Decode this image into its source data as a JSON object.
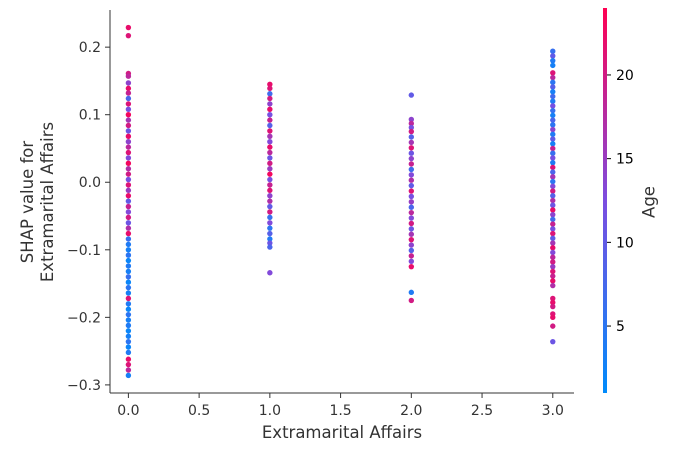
{
  "chart_data": {
    "type": "scatter",
    "title": "",
    "xlabel": "Extramarital Affairs",
    "ylabel_lines": [
      "SHAP value for",
      "Extramarital Affairs"
    ],
    "xlim": [
      -0.13,
      3.15
    ],
    "ylim": [
      -0.312,
      0.255
    ],
    "x_ticks": [
      0.0,
      0.5,
      1.0,
      1.5,
      2.0,
      2.5,
      3.0
    ],
    "x_tick_labels": [
      "0.0",
      "0.5",
      "1.0",
      "1.5",
      "2.0",
      "2.5",
      "3.0"
    ],
    "y_ticks": [
      -0.3,
      -0.2,
      -0.1,
      0.0,
      0.1,
      0.2
    ],
    "y_tick_labels": [
      "−0.3",
      "−0.2",
      "−0.1",
      "0.0",
      "0.1",
      "0.2"
    ],
    "grid": false,
    "colorbar": {
      "label": "Age",
      "range": [
        1,
        24
      ],
      "ticks": [
        5,
        10,
        15,
        20
      ],
      "tick_labels": [
        "5",
        "10",
        "15",
        "20"
      ],
      "colors": [
        "#008bfb",
        "#7c4de0",
        "#ff0052"
      ]
    },
    "points": [
      {
        "x": 0,
        "y": 0.229,
        "c": 22
      },
      {
        "x": 0,
        "y": 0.217,
        "c": 21
      },
      {
        "x": 0,
        "y": 0.161,
        "c": 20
      },
      {
        "x": 0,
        "y": 0.157,
        "c": 18
      },
      {
        "x": 0,
        "y": 0.147,
        "c": 14
      },
      {
        "x": 0,
        "y": 0.139,
        "c": 22
      },
      {
        "x": 0,
        "y": 0.132,
        "c": 19
      },
      {
        "x": 0,
        "y": 0.124,
        "c": 8
      },
      {
        "x": 0,
        "y": 0.116,
        "c": 21
      },
      {
        "x": 0,
        "y": 0.108,
        "c": 12
      },
      {
        "x": 0,
        "y": 0.1,
        "c": 23
      },
      {
        "x": 0,
        "y": 0.092,
        "c": 16
      },
      {
        "x": 0,
        "y": 0.084,
        "c": 20
      },
      {
        "x": 0,
        "y": 0.076,
        "c": 11
      },
      {
        "x": 0,
        "y": 0.068,
        "c": 22
      },
      {
        "x": 0,
        "y": 0.06,
        "c": 14
      },
      {
        "x": 0,
        "y": 0.052,
        "c": 18
      },
      {
        "x": 0,
        "y": 0.044,
        "c": 21
      },
      {
        "x": 0,
        "y": 0.036,
        "c": 13
      },
      {
        "x": 0,
        "y": 0.028,
        "c": 23
      },
      {
        "x": 0,
        "y": 0.02,
        "c": 17
      },
      {
        "x": 0,
        "y": 0.012,
        "c": 20
      },
      {
        "x": 0,
        "y": 0.004,
        "c": 12
      },
      {
        "x": 0,
        "y": -0.004,
        "c": 21
      },
      {
        "x": 0,
        "y": -0.012,
        "c": 15
      },
      {
        "x": 0,
        "y": -0.02,
        "c": 22
      },
      {
        "x": 0,
        "y": -0.028,
        "c": 10
      },
      {
        "x": 0,
        "y": -0.036,
        "c": 19
      },
      {
        "x": 0,
        "y": -0.044,
        "c": 13
      },
      {
        "x": 0,
        "y": -0.052,
        "c": 20
      },
      {
        "x": 0,
        "y": -0.06,
        "c": 11
      },
      {
        "x": 0,
        "y": -0.068,
        "c": 17
      },
      {
        "x": 0,
        "y": -0.076,
        "c": 22
      },
      {
        "x": 0,
        "y": -0.084,
        "c": 6
      },
      {
        "x": 0,
        "y": -0.092,
        "c": 4
      },
      {
        "x": 0,
        "y": -0.1,
        "c": 3
      },
      {
        "x": 0,
        "y": -0.108,
        "c": 5
      },
      {
        "x": 0,
        "y": -0.116,
        "c": 2
      },
      {
        "x": 0,
        "y": -0.124,
        "c": 4
      },
      {
        "x": 0,
        "y": -0.132,
        "c": 3
      },
      {
        "x": 0,
        "y": -0.14,
        "c": 6
      },
      {
        "x": 0,
        "y": -0.148,
        "c": 2
      },
      {
        "x": 0,
        "y": -0.156,
        "c": 5
      },
      {
        "x": 0,
        "y": -0.164,
        "c": 3
      },
      {
        "x": 0,
        "y": -0.172,
        "c": 21
      },
      {
        "x": 0,
        "y": -0.18,
        "c": 4
      },
      {
        "x": 0,
        "y": -0.188,
        "c": 2
      },
      {
        "x": 0,
        "y": -0.196,
        "c": 5
      },
      {
        "x": 0,
        "y": -0.204,
        "c": 3
      },
      {
        "x": 0,
        "y": -0.212,
        "c": 4
      },
      {
        "x": 0,
        "y": -0.22,
        "c": 2
      },
      {
        "x": 0,
        "y": -0.228,
        "c": 3
      },
      {
        "x": 0,
        "y": -0.236,
        "c": 5
      },
      {
        "x": 0,
        "y": -0.244,
        "c": 2
      },
      {
        "x": 0,
        "y": -0.252,
        "c": 4
      },
      {
        "x": 0,
        "y": -0.262,
        "c": 22
      },
      {
        "x": 0,
        "y": -0.27,
        "c": 21
      },
      {
        "x": 0,
        "y": -0.278,
        "c": 18
      },
      {
        "x": 0,
        "y": -0.286,
        "c": 3
      },
      {
        "x": 1,
        "y": 0.145,
        "c": 22
      },
      {
        "x": 1,
        "y": 0.139,
        "c": 21
      },
      {
        "x": 1,
        "y": 0.131,
        "c": 7
      },
      {
        "x": 1,
        "y": 0.124,
        "c": 20
      },
      {
        "x": 1,
        "y": 0.116,
        "c": 14
      },
      {
        "x": 1,
        "y": 0.108,
        "c": 22
      },
      {
        "x": 1,
        "y": 0.1,
        "c": 12
      },
      {
        "x": 1,
        "y": 0.092,
        "c": 19
      },
      {
        "x": 1,
        "y": 0.084,
        "c": 9
      },
      {
        "x": 1,
        "y": 0.076,
        "c": 21
      },
      {
        "x": 1,
        "y": 0.068,
        "c": 16
      },
      {
        "x": 1,
        "y": 0.06,
        "c": 13
      },
      {
        "x": 1,
        "y": 0.052,
        "c": 22
      },
      {
        "x": 1,
        "y": 0.044,
        "c": 18
      },
      {
        "x": 1,
        "y": 0.036,
        "c": 11
      },
      {
        "x": 1,
        "y": 0.028,
        "c": 20
      },
      {
        "x": 1,
        "y": 0.02,
        "c": 15
      },
      {
        "x": 1,
        "y": 0.012,
        "c": 23
      },
      {
        "x": 1,
        "y": 0.004,
        "c": 12
      },
      {
        "x": 1,
        "y": -0.004,
        "c": 19
      },
      {
        "x": 1,
        "y": -0.012,
        "c": 21
      },
      {
        "x": 1,
        "y": -0.02,
        "c": 14
      },
      {
        "x": 1,
        "y": -0.028,
        "c": 17
      },
      {
        "x": 1,
        "y": -0.036,
        "c": 10
      },
      {
        "x": 1,
        "y": -0.044,
        "c": 20
      },
      {
        "x": 1,
        "y": -0.052,
        "c": 6
      },
      {
        "x": 1,
        "y": -0.06,
        "c": 13
      },
      {
        "x": 1,
        "y": -0.068,
        "c": 5
      },
      {
        "x": 1,
        "y": -0.076,
        "c": 9
      },
      {
        "x": 1,
        "y": -0.084,
        "c": 4
      },
      {
        "x": 1,
        "y": -0.09,
        "c": 11
      },
      {
        "x": 1,
        "y": -0.096,
        "c": 8
      },
      {
        "x": 1,
        "y": -0.134,
        "c": 13
      },
      {
        "x": 2,
        "y": 0.129,
        "c": 10
      },
      {
        "x": 2,
        "y": 0.093,
        "c": 14
      },
      {
        "x": 2,
        "y": 0.087,
        "c": 18
      },
      {
        "x": 2,
        "y": 0.081,
        "c": 12
      },
      {
        "x": 2,
        "y": 0.075,
        "c": 20
      },
      {
        "x": 2,
        "y": 0.067,
        "c": 9
      },
      {
        "x": 2,
        "y": 0.059,
        "c": 16
      },
      {
        "x": 2,
        "y": 0.051,
        "c": 21
      },
      {
        "x": 2,
        "y": 0.043,
        "c": 11
      },
      {
        "x": 2,
        "y": 0.035,
        "c": 14
      },
      {
        "x": 2,
        "y": 0.027,
        "c": 19
      },
      {
        "x": 2,
        "y": 0.019,
        "c": 7
      },
      {
        "x": 2,
        "y": 0.011,
        "c": 13
      },
      {
        "x": 2,
        "y": 0.003,
        "c": 17
      },
      {
        "x": 2,
        "y": -0.005,
        "c": 10
      },
      {
        "x": 2,
        "y": -0.013,
        "c": 21
      },
      {
        "x": 2,
        "y": -0.021,
        "c": 12
      },
      {
        "x": 2,
        "y": -0.029,
        "c": 15
      },
      {
        "x": 2,
        "y": -0.037,
        "c": 8
      },
      {
        "x": 2,
        "y": -0.045,
        "c": 18
      },
      {
        "x": 2,
        "y": -0.053,
        "c": 13
      },
      {
        "x": 2,
        "y": -0.061,
        "c": 20
      },
      {
        "x": 2,
        "y": -0.069,
        "c": 11
      },
      {
        "x": 2,
        "y": -0.077,
        "c": 16
      },
      {
        "x": 2,
        "y": -0.085,
        "c": 21
      },
      {
        "x": 2,
        "y": -0.093,
        "c": 14
      },
      {
        "x": 2,
        "y": -0.101,
        "c": 9
      },
      {
        "x": 2,
        "y": -0.109,
        "c": 19
      },
      {
        "x": 2,
        "y": -0.117,
        "c": 13
      },
      {
        "x": 2,
        "y": -0.125,
        "c": 22
      },
      {
        "x": 2,
        "y": -0.163,
        "c": 4
      },
      {
        "x": 2,
        "y": -0.175,
        "c": 20
      },
      {
        "x": 3,
        "y": 0.194,
        "c": 6
      },
      {
        "x": 3,
        "y": 0.187,
        "c": 10
      },
      {
        "x": 3,
        "y": 0.18,
        "c": 4
      },
      {
        "x": 3,
        "y": 0.173,
        "c": 3
      },
      {
        "x": 3,
        "y": 0.162,
        "c": 21
      },
      {
        "x": 3,
        "y": 0.155,
        "c": 18
      },
      {
        "x": 3,
        "y": 0.148,
        "c": 5
      },
      {
        "x": 3,
        "y": 0.141,
        "c": 9
      },
      {
        "x": 3,
        "y": 0.134,
        "c": 3
      },
      {
        "x": 3,
        "y": 0.127,
        "c": 7
      },
      {
        "x": 3,
        "y": 0.12,
        "c": 4
      },
      {
        "x": 3,
        "y": 0.113,
        "c": 12
      },
      {
        "x": 3,
        "y": 0.106,
        "c": 6
      },
      {
        "x": 3,
        "y": 0.099,
        "c": 3
      },
      {
        "x": 3,
        "y": 0.092,
        "c": 8
      },
      {
        "x": 3,
        "y": 0.085,
        "c": 5
      },
      {
        "x": 3,
        "y": 0.078,
        "c": 14
      },
      {
        "x": 3,
        "y": 0.071,
        "c": 4
      },
      {
        "x": 3,
        "y": 0.064,
        "c": 10
      },
      {
        "x": 3,
        "y": 0.057,
        "c": 3
      },
      {
        "x": 3,
        "y": 0.05,
        "c": 19
      },
      {
        "x": 3,
        "y": 0.043,
        "c": 6
      },
      {
        "x": 3,
        "y": 0.036,
        "c": 12
      },
      {
        "x": 3,
        "y": 0.029,
        "c": 4
      },
      {
        "x": 3,
        "y": 0.022,
        "c": 21
      },
      {
        "x": 3,
        "y": 0.015,
        "c": 8
      },
      {
        "x": 3,
        "y": 0.008,
        "c": 16
      },
      {
        "x": 3,
        "y": 0.001,
        "c": 5
      },
      {
        "x": 3,
        "y": -0.006,
        "c": 13
      },
      {
        "x": 3,
        "y": -0.013,
        "c": 20
      },
      {
        "x": 3,
        "y": -0.02,
        "c": 9
      },
      {
        "x": 3,
        "y": -0.027,
        "c": 17
      },
      {
        "x": 3,
        "y": -0.034,
        "c": 11
      },
      {
        "x": 3,
        "y": -0.041,
        "c": 22
      },
      {
        "x": 3,
        "y": -0.048,
        "c": 14
      },
      {
        "x": 3,
        "y": -0.055,
        "c": 7
      },
      {
        "x": 3,
        "y": -0.062,
        "c": 19
      },
      {
        "x": 3,
        "y": -0.069,
        "c": 12
      },
      {
        "x": 3,
        "y": -0.076,
        "c": 21
      },
      {
        "x": 3,
        "y": -0.083,
        "c": 10
      },
      {
        "x": 3,
        "y": -0.09,
        "c": 16
      },
      {
        "x": 3,
        "y": -0.097,
        "c": 22
      },
      {
        "x": 3,
        "y": -0.104,
        "c": 13
      },
      {
        "x": 3,
        "y": -0.111,
        "c": 18
      },
      {
        "x": 3,
        "y": -0.118,
        "c": 20
      },
      {
        "x": 3,
        "y": -0.125,
        "c": 15
      },
      {
        "x": 3,
        "y": -0.132,
        "c": 21
      },
      {
        "x": 3,
        "y": -0.139,
        "c": 19
      },
      {
        "x": 3,
        "y": -0.146,
        "c": 22
      },
      {
        "x": 3,
        "y": -0.153,
        "c": 17
      },
      {
        "x": 3,
        "y": -0.172,
        "c": 21
      },
      {
        "x": 3,
        "y": -0.178,
        "c": 22
      },
      {
        "x": 3,
        "y": -0.184,
        "c": 20
      },
      {
        "x": 3,
        "y": -0.195,
        "c": 21
      },
      {
        "x": 3,
        "y": -0.2,
        "c": 22
      },
      {
        "x": 3,
        "y": -0.213,
        "c": 20
      },
      {
        "x": 3,
        "y": -0.236,
        "c": 11
      }
    ]
  }
}
